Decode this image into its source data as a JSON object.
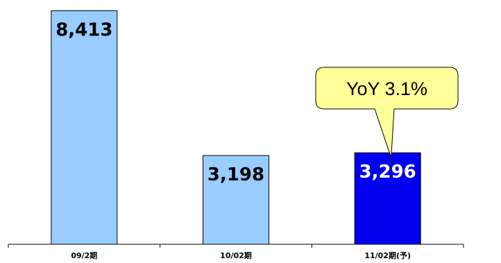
{
  "chart_data": {
    "type": "bar",
    "categories": [
      "09/2期",
      "10/02期",
      "11/02期(予)"
    ],
    "values": [
      8413,
      3198,
      3296
    ],
    "value_labels": [
      "8,413",
      "3,198",
      "3,296"
    ],
    "bar_colors": [
      "#99ccff",
      "#99ccff",
      "#0000ee"
    ],
    "value_label_colors": [
      "#000000",
      "#000000",
      "#ffffff"
    ],
    "ylim": [
      0,
      8800
    ],
    "grid": false,
    "annotation": {
      "text": "YoY  3.1%",
      "target_category_index": 2,
      "fill": "#ffff99"
    }
  }
}
